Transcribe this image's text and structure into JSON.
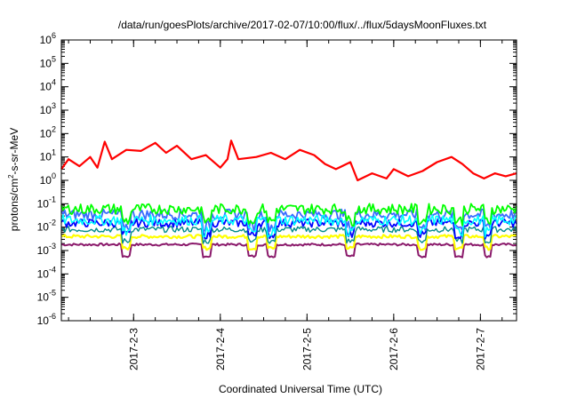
{
  "chart_data": {
    "type": "line",
    "title": "/data/run/goesPlots/archive/2017-02-07/10:00/flux/../flux/5daysMoonFluxes.txt",
    "xlabel": "Coordinated Universal Time (UTC)",
    "ylabel": "protons/cm²-s-sr-MeV",
    "ylabel_base": "protons/cm",
    "ylabel_sup": "2",
    "ylabel_rest": "-s-sr-MeV",
    "yscale": "log",
    "ylim": [
      1e-06,
      1000000.0
    ],
    "xlim": [
      "2017-02-02T04:00",
      "2017-02-07T10:00"
    ],
    "grid": false,
    "legend": "none",
    "y_tick_exponents": [
      -6,
      -5,
      -4,
      -3,
      -2,
      -1,
      0,
      1,
      2,
      3,
      4,
      5,
      6
    ],
    "x_ticks": [
      {
        "date": "2017-02-03T00:00",
        "label": "2017-2-3"
      },
      {
        "date": "2017-02-04T00:00",
        "label": "2017-2-4"
      },
      {
        "date": "2017-02-05T00:00",
        "label": "2017-2-5"
      },
      {
        "date": "2017-02-06T00:00",
        "label": "2017-2-6"
      },
      {
        "date": "2017-02-07T00:00",
        "label": "2017-2-7"
      }
    ],
    "series": [
      {
        "color": "#ff0000",
        "width": 2.2,
        "points": [
          [
            "2017-02-02T04:00",
            3.0
          ],
          [
            "2017-02-02T06:00",
            8.0
          ],
          [
            "2017-02-02T09:00",
            4.0
          ],
          [
            "2017-02-02T12:00",
            10.0
          ],
          [
            "2017-02-02T14:00",
            3.5
          ],
          [
            "2017-02-02T16:00",
            45.0
          ],
          [
            "2017-02-02T18:00",
            8.0
          ],
          [
            "2017-02-02T22:00",
            20.0
          ],
          [
            "2017-02-03T02:00",
            18.0
          ],
          [
            "2017-02-03T06:00",
            40.0
          ],
          [
            "2017-02-03T09:00",
            15.0
          ],
          [
            "2017-02-03T12:00",
            30.0
          ],
          [
            "2017-02-03T16:00",
            8.0
          ],
          [
            "2017-02-03T20:00",
            12.0
          ],
          [
            "2017-02-04T00:00",
            3.5
          ],
          [
            "2017-02-04T02:00",
            8.0
          ],
          [
            "2017-02-04T03:00",
            50.0
          ],
          [
            "2017-02-04T05:00",
            8.0
          ],
          [
            "2017-02-04T10:00",
            10.0
          ],
          [
            "2017-02-04T14:00",
            15.0
          ],
          [
            "2017-02-04T18:00",
            8.0
          ],
          [
            "2017-02-04T22:00",
            20.0
          ],
          [
            "2017-02-05T02:00",
            12.0
          ],
          [
            "2017-02-05T05:00",
            5.0
          ],
          [
            "2017-02-05T08:00",
            3.0
          ],
          [
            "2017-02-05T12:00",
            6.0
          ],
          [
            "2017-02-05T14:00",
            1.0
          ],
          [
            "2017-02-05T18:00",
            2.0
          ],
          [
            "2017-02-05T22:00",
            1.2
          ],
          [
            "2017-02-06T00:00",
            3.0
          ],
          [
            "2017-02-06T04:00",
            1.5
          ],
          [
            "2017-02-06T08:00",
            2.5
          ],
          [
            "2017-02-06T12:00",
            6.0
          ],
          [
            "2017-02-06T16:00",
            10.0
          ],
          [
            "2017-02-06T19:00",
            5.0
          ],
          [
            "2017-02-06T22:00",
            2.0
          ],
          [
            "2017-02-07T01:00",
            1.2
          ],
          [
            "2017-02-07T04:00",
            2.0
          ],
          [
            "2017-02-07T07:00",
            1.5
          ],
          [
            "2017-02-07T10:00",
            2.0
          ]
        ]
      },
      {
        "color": "#00ff00",
        "base": 0.06,
        "spread": 0.45,
        "width": 1.8
      },
      {
        "color": "#00ffff",
        "base": 0.02,
        "spread": 0.45,
        "width": 1.6
      },
      {
        "color": "#3a6cff",
        "base": 0.035,
        "spread": 0.45,
        "width": 1.8
      },
      {
        "color": "#0000ff",
        "base": 0.015,
        "spread": 0.35,
        "width": 1.8
      },
      {
        "color": "#008b8b",
        "base": 0.008,
        "spread": 0.25,
        "width": 1.4
      },
      {
        "color": "#ffff00",
        "base": 0.004,
        "spread": 0.15,
        "width": 2.2
      },
      {
        "color": "#8b1a6b",
        "base": 0.0018,
        "spread": 0.1,
        "width": 2.0
      }
    ]
  }
}
